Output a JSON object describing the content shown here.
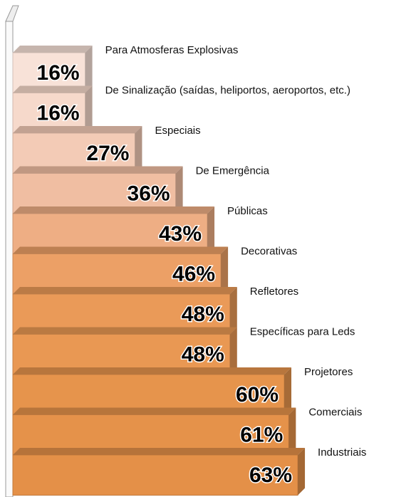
{
  "chart_data": {
    "type": "bar",
    "categories": [
      "Para Atmosferas Explosivas",
      "De Sinalização (saídas, heliportos, aeroportos, etc.)",
      "Especiais",
      "De Emergência",
      "Públicas",
      "Decorativas",
      "Refletores",
      "Específicas para Leds",
      "Projetores",
      "Comerciais",
      "Industriais"
    ],
    "values": [
      16,
      16,
      27,
      36,
      43,
      46,
      48,
      48,
      60,
      61,
      63
    ],
    "value_labels": [
      "16%",
      "16%",
      "27%",
      "36%",
      "43%",
      "46%",
      "48%",
      "48%",
      "60%",
      "61%",
      "63%"
    ],
    "colors": [
      "#f8e2d8",
      "#f6d9cb",
      "#f3cbb6",
      "#f0bea2",
      "#eeae84",
      "#eca066",
      "#ea9a58",
      "#e99853",
      "#e6944c",
      "#e5924a",
      "#e49048"
    ]
  }
}
